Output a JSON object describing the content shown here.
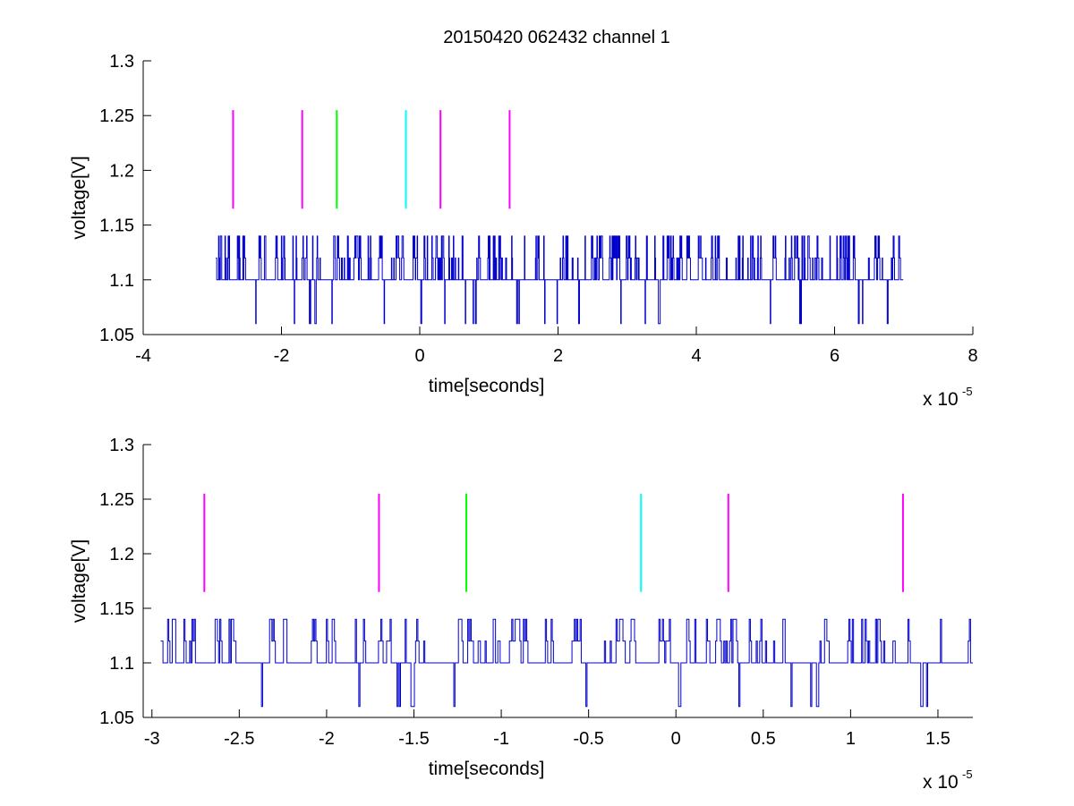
{
  "figure": {
    "title": "20150420 062432 channel 1",
    "background": "#ffffff"
  },
  "chart_data": [
    {
      "type": "line",
      "name": "top",
      "xlabel": "time[seconds]",
      "ylabel": "voltage[V]",
      "x_multiplier_label": "x 10",
      "x_multiplier_exponent": "-5",
      "xlim": [
        -4,
        8
      ],
      "ylim": [
        1.05,
        1.3
      ],
      "xticks": [
        -4,
        -2,
        0,
        2,
        4,
        6,
        8
      ],
      "xtick_labels": [
        "-4",
        "-2",
        "0",
        "2",
        "4",
        "6",
        "8"
      ],
      "yticks": [
        1.05,
        1.1,
        1.15,
        1.2,
        1.25,
        1.3
      ],
      "ytick_labels": [
        "1.05",
        "1.1",
        "1.15",
        "1.2",
        "1.25",
        "1.3"
      ],
      "grid": false,
      "series": [
        {
          "kind": "signal",
          "color": "#0000cc",
          "x_range": [
            -2.95,
            7.0
          ],
          "levels": [
            1.06,
            1.1,
            1.12,
            1.14
          ],
          "baseline": 1.1
        }
      ],
      "markers": [
        {
          "x": -2.7,
          "y_from": 1.165,
          "y_to": 1.255,
          "color": "#ff00ff"
        },
        {
          "x": -1.7,
          "y_from": 1.165,
          "y_to": 1.255,
          "color": "#ff00ff"
        },
        {
          "x": -1.2,
          "y_from": 1.165,
          "y_to": 1.255,
          "color": "#00ff00"
        },
        {
          "x": -0.2,
          "y_from": 1.165,
          "y_to": 1.255,
          "color": "#00ffff"
        },
        {
          "x": 0.3,
          "y_from": 1.165,
          "y_to": 1.255,
          "color": "#ff00ff"
        },
        {
          "x": 1.3,
          "y_from": 1.165,
          "y_to": 1.255,
          "color": "#ff00ff"
        }
      ]
    },
    {
      "type": "line",
      "name": "bottom",
      "xlabel": "time[seconds]",
      "ylabel": "voltage[V]",
      "x_multiplier_label": "x 10",
      "x_multiplier_exponent": "-5",
      "xlim": [
        -3.05,
        1.7
      ],
      "ylim": [
        1.05,
        1.3
      ],
      "xticks": [
        -3,
        -2.5,
        -2,
        -1.5,
        -1,
        -0.5,
        0,
        0.5,
        1,
        1.5
      ],
      "xtick_labels": [
        "-3",
        "-2.5",
        "-2",
        "-1.5",
        "-1",
        "-0.5",
        "0",
        "0.5",
        "1",
        "1.5"
      ],
      "yticks": [
        1.05,
        1.1,
        1.15,
        1.2,
        1.25,
        1.3
      ],
      "ytick_labels": [
        "1.05",
        "1.1",
        "1.15",
        "1.2",
        "1.25",
        "1.3"
      ],
      "grid": false,
      "series": [
        {
          "kind": "signal",
          "color": "#0000cc",
          "x_range": [
            -2.95,
            1.7
          ],
          "levels": [
            1.06,
            1.1,
            1.12,
            1.14
          ],
          "baseline": 1.1
        }
      ],
      "markers": [
        {
          "x": -2.7,
          "y_from": 1.165,
          "y_to": 1.255,
          "color": "#ff00ff"
        },
        {
          "x": -1.7,
          "y_from": 1.165,
          "y_to": 1.255,
          "color": "#ff00ff"
        },
        {
          "x": -1.2,
          "y_from": 1.165,
          "y_to": 1.255,
          "color": "#00ff00"
        },
        {
          "x": -0.2,
          "y_from": 1.165,
          "y_to": 1.255,
          "color": "#00ffff"
        },
        {
          "x": 0.3,
          "y_from": 1.165,
          "y_to": 1.255,
          "color": "#ff00ff"
        },
        {
          "x": 1.3,
          "y_from": 1.165,
          "y_to": 1.255,
          "color": "#ff00ff"
        }
      ]
    }
  ]
}
